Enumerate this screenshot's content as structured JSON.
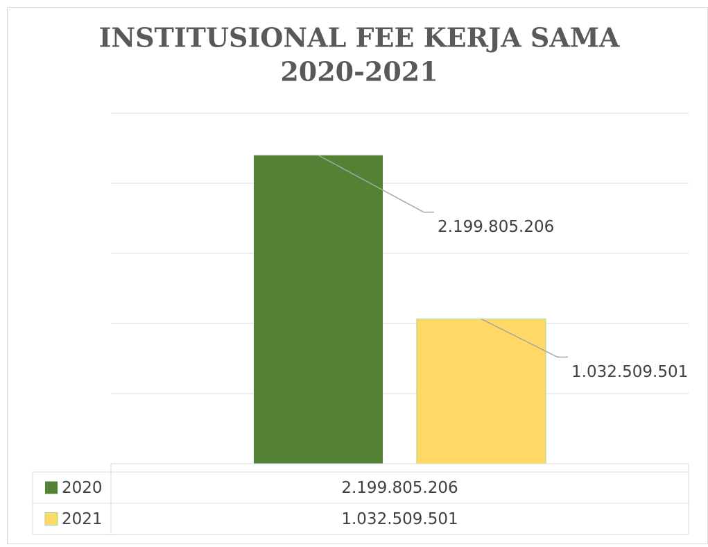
{
  "chart_data": {
    "type": "bar",
    "title": [
      "INSTITUSIONAL FEE KERJA SAMA",
      "2020-2021"
    ],
    "categories": [
      null
    ],
    "series": [
      {
        "name": "2020",
        "color": "#548235",
        "values": [
          2199805206
        ],
        "value_labels": [
          "2.199.805.206"
        ]
      },
      {
        "name": "2021",
        "color": "#ffd966",
        "values": [
          1032509501
        ],
        "value_labels": [
          "1.032.509.501"
        ]
      }
    ],
    "ylim": [
      0,
      2500000000
    ],
    "yticks": [
      0,
      500000000,
      1000000000,
      1500000000,
      2000000000,
      2500000000
    ],
    "grid": true
  }
}
